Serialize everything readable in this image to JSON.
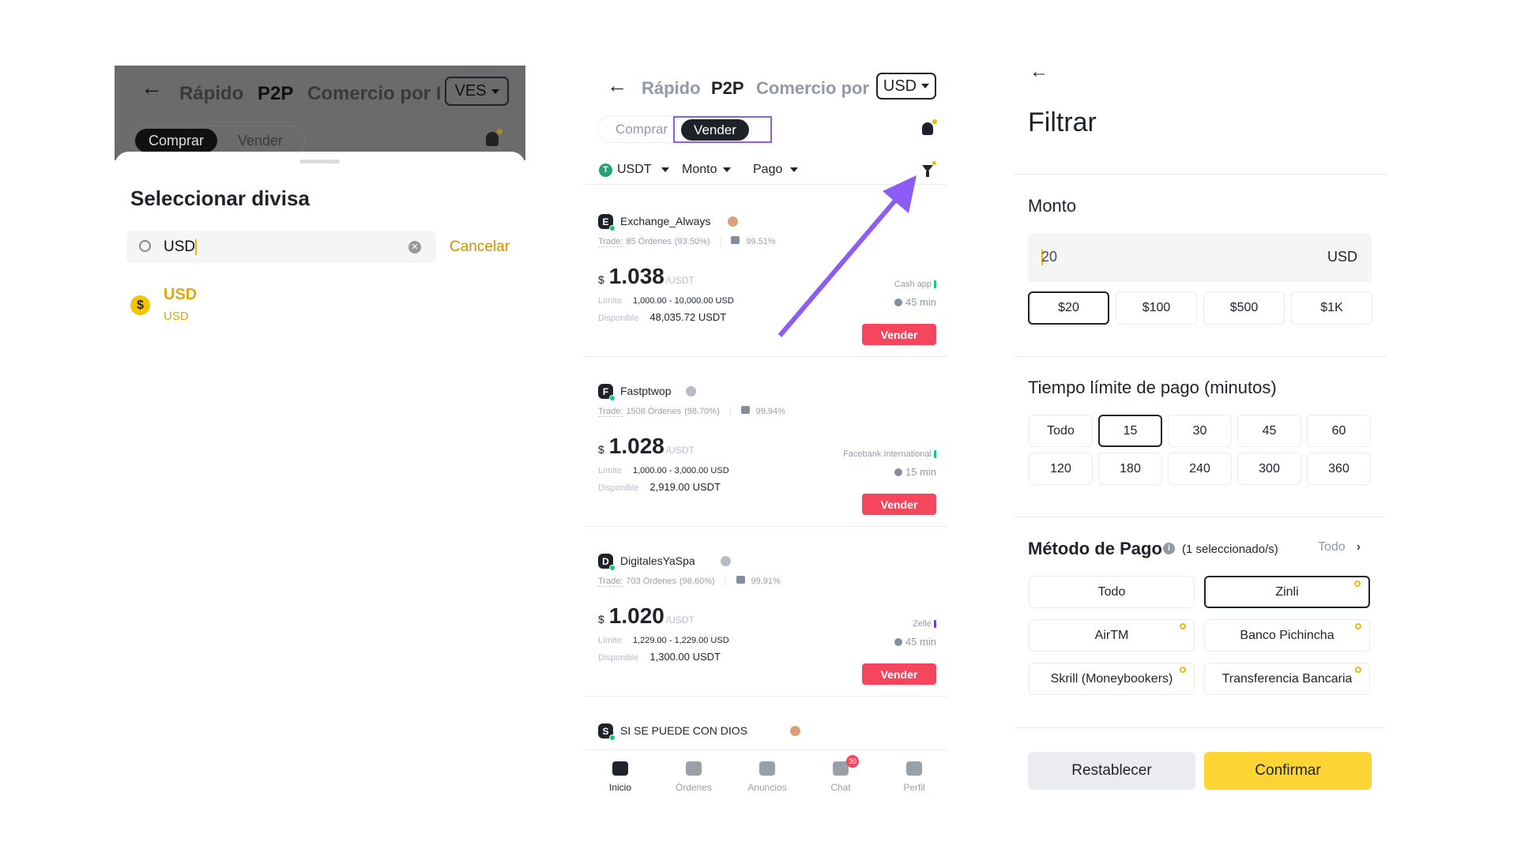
{
  "colors": {
    "accent_yellow": "#FCD535",
    "sell_red": "#F6465D",
    "highlight_purple": "#8B5CF6",
    "online_green": "#0ECB81"
  },
  "left": {
    "header": {
      "tabs": [
        "Rápido",
        "P2P",
        "Comercio por I"
      ],
      "currency": "VES",
      "toggle": [
        "Comprar",
        "Vender"
      ]
    },
    "sheet": {
      "title": "Seleccionar divisa",
      "search_value": "USD",
      "cancel": "Cancelar",
      "results": [
        {
          "code": "USD",
          "name": "USD",
          "icon": "dollar-coin-icon"
        }
      ]
    }
  },
  "middle": {
    "header": {
      "tabs": [
        "Rápido",
        "P2P",
        "Comercio por"
      ],
      "currency": "USD",
      "toggle": [
        "Comprar",
        "Vender"
      ],
      "active_toggle": "Vender"
    },
    "filters": {
      "asset": "USDT",
      "amount": "Monto",
      "payment": "Pago"
    },
    "labels": {
      "trade": "Trade:",
      "limit": "Límite",
      "available": "Disponible",
      "unit": "/USDT",
      "currency_symbol": "$",
      "sell": "Vender"
    },
    "ads": [
      {
        "initial": "E",
        "name": "Exchange_Always",
        "orders": "85 Órdenes",
        "completion": "(93.50%)",
        "rating": "99.51%",
        "price": "1.038",
        "limit": "1,000.00 - 10,000.00 USD",
        "available": "48,035.72 USDT",
        "method": "Cash app",
        "method_color": "#0ECB81",
        "time": "45 min"
      },
      {
        "initial": "F",
        "name": "Fastptwop",
        "orders": "1508 Órdenes",
        "completion": "(98.70%)",
        "rating": "99.94%",
        "price": "1.028",
        "limit": "1,000.00 - 3,000.00 USD",
        "available": "2,919.00 USDT",
        "method": "Facebank International",
        "method_color": "#0ECB81",
        "time": "15 min"
      },
      {
        "initial": "D",
        "name": "DigitalesYaSpa",
        "orders": "703 Órdenes",
        "completion": "(98.60%)",
        "rating": "99.91%",
        "price": "1.020",
        "limit": "1,229.00 - 1,229.00 USD",
        "available": "1,300.00 USDT",
        "method": "Zelle",
        "method_color": "#6A3DE8",
        "time": "45 min"
      },
      {
        "initial": "S",
        "name": "SI SE PUEDE CON DIOS"
      }
    ],
    "nav": [
      {
        "label": "Inicio",
        "icon": "users-icon",
        "active": true
      },
      {
        "label": "Órdenes",
        "icon": "orders-icon"
      },
      {
        "label": "Anuncios",
        "icon": "megaphone-icon"
      },
      {
        "label": "Chat",
        "icon": "chat-icon",
        "badge": "30"
      },
      {
        "label": "Perfil",
        "icon": "profile-icon"
      }
    ]
  },
  "right": {
    "title": "Filtrar",
    "amount": {
      "title": "Monto",
      "value": "20",
      "currency": "USD",
      "presets": [
        "$20",
        "$100",
        "$500",
        "$1K"
      ],
      "selected": "$20"
    },
    "time": {
      "title": "Tiempo límite de pago (minutos)",
      "options": [
        "Todo",
        "15",
        "30",
        "45",
        "60",
        "120",
        "180",
        "240",
        "300",
        "360"
      ],
      "selected": "15"
    },
    "payment": {
      "title": "Método de Pago",
      "count": "(1 seleccionado/s)",
      "all_link": "Todo",
      "options": [
        "Todo",
        "Zinli",
        "AirTM",
        "Banco Pichincha",
        "Skrill (Moneybookers)",
        "Transferencia Bancaria"
      ],
      "selected": "Zinli"
    },
    "reset": "Restablecer",
    "confirm": "Confirmar"
  }
}
